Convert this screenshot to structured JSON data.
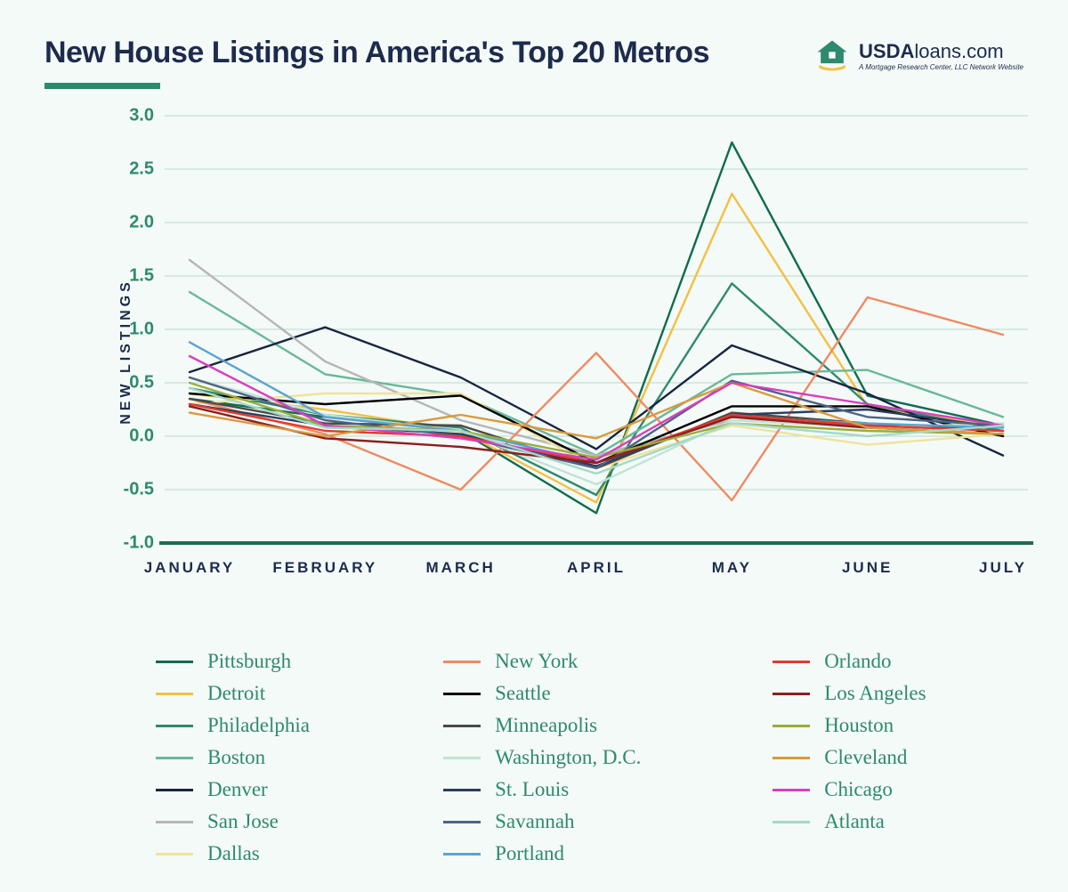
{
  "header": {
    "title": "New House Listings in America's Top 20 Metros",
    "logo": {
      "brand_bold": "USDA",
      "brand_rest": "loans.com",
      "tagline": "A Mortgage Research Center, LLC Network Website",
      "icon_color": "#2d8a6e",
      "icon_accent": "#f2c043"
    }
  },
  "chart": {
    "type": "line",
    "ylabel": "NEW LISTINGS",
    "background_color": "#f4faf7",
    "grid_color": "#b7dacd",
    "axis_color": "#1d6b54",
    "axis_width": 4,
    "tick_label_color": "#2d8a6e",
    "xtick_label_color": "#1d2b4c",
    "tick_fontsize": 20,
    "xtick_fontsize": 17,
    "line_width": 2.4,
    "ylim": [
      -1.0,
      3.0
    ],
    "yticks": [
      -1.0,
      -0.5,
      0.0,
      0.5,
      1.0,
      1.5,
      2.0,
      2.5,
      3.0
    ],
    "ytick_labels": [
      "-1.0",
      "-0.5",
      "0.0",
      "0.5",
      "1.0",
      "1.5",
      "2.0",
      "2.5",
      "3.0"
    ],
    "categories": [
      "JANUARY",
      "FEBRUARY",
      "MARCH",
      "APRIL",
      "MAY",
      "JUNE",
      "JULY"
    ],
    "series": [
      {
        "name": "Pittsburgh",
        "color": "#0f6b4f",
        "values": [
          0.35,
          0.18,
          0.05,
          -0.72,
          2.75,
          0.38,
          0.1
        ]
      },
      {
        "name": "Detroit",
        "color": "#f2c043",
        "values": [
          0.4,
          0.25,
          0.05,
          -0.62,
          2.27,
          0.28,
          0.08
        ]
      },
      {
        "name": "Philadelphia",
        "color": "#2d8a6e",
        "values": [
          0.45,
          0.2,
          0.08,
          -0.55,
          1.43,
          0.3,
          0.05
        ]
      },
      {
        "name": "Boston",
        "color": "#68b89a",
        "values": [
          1.35,
          0.58,
          0.38,
          -0.18,
          0.58,
          0.62,
          0.18
        ]
      },
      {
        "name": "Denver",
        "color": "#18253f",
        "values": [
          0.6,
          1.02,
          0.55,
          -0.12,
          0.85,
          0.4,
          -0.18
        ]
      },
      {
        "name": "San Jose",
        "color": "#b6b6b6",
        "values": [
          1.65,
          0.7,
          0.15,
          -0.18,
          0.15,
          0.1,
          0.05
        ]
      },
      {
        "name": "Dallas",
        "color": "#efe39b",
        "values": [
          0.3,
          0.4,
          0.4,
          -0.3,
          0.1,
          -0.08,
          0.02
        ]
      },
      {
        "name": "New York",
        "color": "#ef8a62",
        "values": [
          0.35,
          0.02,
          -0.5,
          0.78,
          -0.6,
          1.3,
          0.95
        ]
      },
      {
        "name": "Seattle",
        "color": "#000000",
        "values": [
          0.4,
          0.3,
          0.38,
          -0.25,
          0.28,
          0.28,
          0.0
        ]
      },
      {
        "name": "Minneapolis",
        "color": "#4a4a4a",
        "values": [
          0.35,
          0.12,
          0.1,
          -0.3,
          0.22,
          0.12,
          0.05
        ]
      },
      {
        "name": "Washington, D.C.",
        "color": "#c2e3d5",
        "values": [
          0.55,
          0.2,
          0.05,
          -0.45,
          0.15,
          0.08,
          0.12
        ]
      },
      {
        "name": "St. Louis",
        "color": "#2b3d5c",
        "values": [
          0.3,
          0.1,
          0.02,
          -0.28,
          0.2,
          0.25,
          0.08
        ]
      },
      {
        "name": "Savannah",
        "color": "#4f6385",
        "values": [
          0.55,
          0.15,
          0.0,
          -0.3,
          0.52,
          0.18,
          0.1
        ]
      },
      {
        "name": "Portland",
        "color": "#5ba3d0",
        "values": [
          0.88,
          0.18,
          0.05,
          -0.25,
          0.18,
          0.12,
          0.08
        ]
      },
      {
        "name": "Orlando",
        "color": "#e23b30",
        "values": [
          0.3,
          0.05,
          0.0,
          -0.25,
          0.2,
          0.1,
          0.05
        ]
      },
      {
        "name": "Los Angeles",
        "color": "#8a1f1f",
        "values": [
          0.28,
          -0.02,
          -0.1,
          -0.25,
          0.18,
          0.08,
          0.02
        ]
      },
      {
        "name": "Houston",
        "color": "#9aad3b",
        "values": [
          0.5,
          0.1,
          0.05,
          -0.2,
          0.12,
          0.05,
          0.02
        ]
      },
      {
        "name": "Cleveland",
        "color": "#d99a3d",
        "values": [
          0.22,
          0.0,
          0.2,
          -0.02,
          0.5,
          0.08,
          0.02
        ]
      },
      {
        "name": "Chicago",
        "color": "#d83fbf",
        "values": [
          0.75,
          0.1,
          -0.02,
          -0.22,
          0.5,
          0.3,
          0.1
        ]
      },
      {
        "name": "Atlanta",
        "color": "#a3d9c9",
        "values": [
          0.45,
          0.08,
          0.05,
          -0.35,
          0.12,
          0.0,
          0.1
        ]
      }
    ],
    "legend_order": [
      [
        "Pittsburgh",
        "New York",
        "Orlando"
      ],
      [
        "Detroit",
        "Seattle",
        "Los Angeles"
      ],
      [
        "Philadelphia",
        "Minneapolis",
        "Houston"
      ],
      [
        "Boston",
        "Washington, D.C.",
        "Cleveland"
      ],
      [
        "Denver",
        "St. Louis",
        "Chicago"
      ],
      [
        "San Jose",
        "Savannah",
        "Atlanta"
      ],
      [
        "Dallas",
        "Portland",
        ""
      ]
    ]
  }
}
